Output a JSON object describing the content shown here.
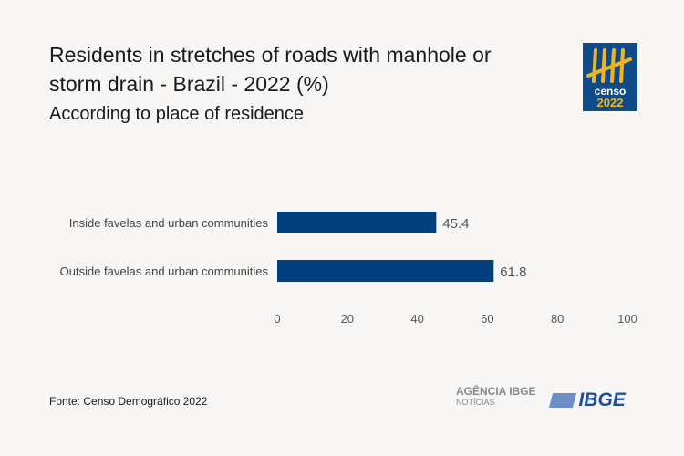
{
  "title": "Residents in stretches of roads with manhole or storm drain - Brazil - 2022  (%)",
  "subtitle": "According to place of residence",
  "source": "Fonte: Censo Demográfico 2022",
  "logo": {
    "line1": "censo",
    "line2": "2022"
  },
  "footer": {
    "agencia": "AGÊNCIA IBGE",
    "noticias": "NOTÍCIAS",
    "ibge": "IBGE"
  },
  "colors": {
    "bar": "#003e7e",
    "logo_bg": "#0f4a8a",
    "logo_accent": "#f5b31c"
  },
  "chart_data": {
    "type": "bar",
    "orientation": "horizontal",
    "categories": [
      "Inside favelas and urban communities",
      "Outside favelas and urban communities"
    ],
    "values": [
      45.4,
      61.8
    ],
    "labels": [
      "45.4",
      "61.8"
    ],
    "xlim": [
      0,
      100
    ],
    "xticks": [
      "0",
      "20",
      "40",
      "60",
      "80",
      "100"
    ],
    "grid": false
  }
}
